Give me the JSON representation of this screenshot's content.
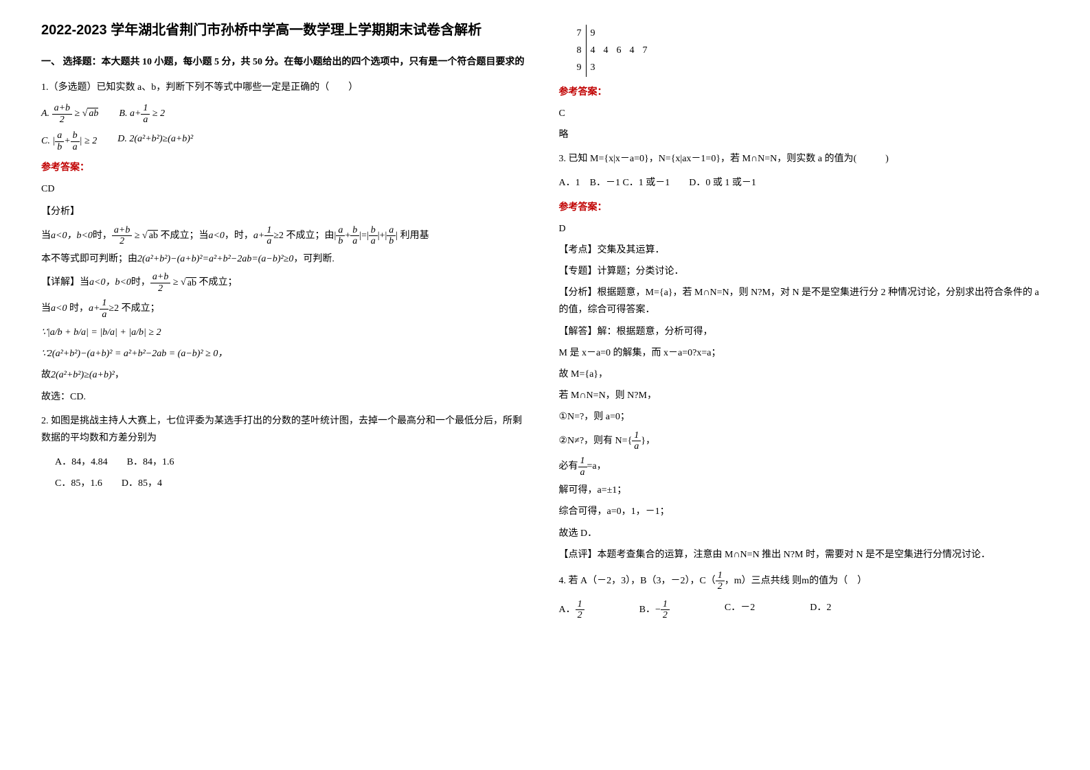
{
  "title": "2022-2023 学年湖北省荆门市孙桥中学高一数学理上学期期末试卷含解析",
  "section_header": "一、 选择题：本大题共 10 小题，每小题 5 分，共 50 分。在每小题给出的四个选项中，只有是一个符合题目要求的",
  "q1": {
    "stem": "1.（多选题）已知实数 a、b，判断下列不等式中哪些一定是正确的（　　）",
    "optA_label": "A.",
    "optB_label": "B.",
    "optC_label": "C.",
    "optD_label": "D.",
    "answer_label": "参考答案：",
    "answer": "CD",
    "analysis_label": "【分析】",
    "a1_pre": "当",
    "a1_cond": "a<0，b<0",
    "a1_mid": "时，",
    "a1_post": "不成立；当",
    "a1_mid2": "，时，",
    "a1_post2": "不成立；由",
    "a1_end": "利用基",
    "a2_pre": "本不等式即可判断；由",
    "a2_expr": "2(a²+b²)−(a+b)²=a²+b²−2ab=(a−b)²≥0",
    "a2_post": "，可判断.",
    "detail_label": "【详解】当",
    "d1_post": "不成立；",
    "d2_pre": "当",
    "d2_cond": "a<0",
    "d2_post": "不成立；",
    "d3_expr": "∵|a/b + b/a| = |b/a| + |a/b| ≥ 2",
    "d4_expr": "∵2(a²+b²)−(a+b)² = a²+b²−2ab = (a−b)² ≥ 0",
    "d5_pre": "故",
    "d5_expr": "2(a²+b²)≥(a+b)²",
    "conclusion": "故选：CD."
  },
  "q2": {
    "stem": "2. 如图是挑战主持人大赛上，七位评委为某选手打出的分数的茎叶统计图，去掉一个最高分和一个最低分后，所剩数据的平均数和方差分别为",
    "optA": "A．84，4.84",
    "optB": "B．84，1.6",
    "optC": "C．85，1.6",
    "optD": "D．85，4",
    "stemleaf": {
      "rows": [
        {
          "left": [
            "7"
          ],
          "right": [
            "9"
          ]
        },
        {
          "left": [
            "8"
          ],
          "right": [
            "4",
            "4",
            "6",
            "4",
            "7"
          ]
        },
        {
          "left": [
            "9"
          ],
          "right": [
            "3"
          ]
        }
      ]
    },
    "answer_label": "参考答案：",
    "answer": "C",
    "note": "略"
  },
  "q3": {
    "stem": "3. 已知 M={x|x－a=0}，N={x|ax－1=0}，若 M∩N=N，则实数 a 的值为(　　　)",
    "opts": "A．1　B．－1  C．1 或－1　　D．0 或 1 或－1",
    "answer_label": "参考答案：",
    "answer": "D",
    "l1": "【考点】交集及其运算．",
    "l2": "【专题】计算题；分类讨论．",
    "l3": "【分析】根据题意，M={a}，若 M∩N=N，则 N?M，对 N 是不是空集进行分 2 种情况讨论，分别求出符合条件的 a 的值，综合可得答案．",
    "l4": "【解答】解：根据题意，分析可得，",
    "l5": "M 是 x－a=0 的解集，而 x－a=0?x=a；",
    "l6": "故 M={a}，",
    "l7": "若 M∩N=N，则 N?M，",
    "l8": "①N=?，则 a=0；",
    "l9_pre": "②N≠?，则有 N={",
    "l9_post": "}，",
    "l10_pre": "必有",
    "l10_post": "=a，",
    "l11": "解可得，a=±1；",
    "l12": "综合可得，a=0，1，－1；",
    "l13": "故选 D．",
    "l14": "【点评】本题考查集合的运算，注意由 M∩N=N 推出 N?M 时，需要对 N 是不是空集进行分情况讨论．"
  },
  "q4": {
    "stem_pre": "4. 若 A（－2，3），B（3，－2），C（",
    "stem_post": "，m）三点共线 则m的值为（　）",
    "optA": "A．",
    "optB": "B．",
    "optC": "C．－2",
    "optD": "D．2"
  }
}
